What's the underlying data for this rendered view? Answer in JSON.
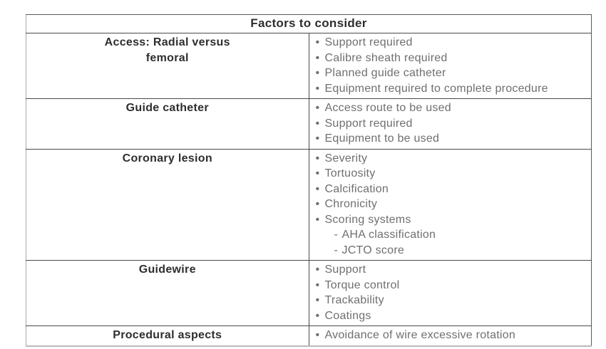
{
  "page": {
    "background": "#ffffff"
  },
  "table": {
    "title": "Factors to consider",
    "markers": {
      "bullet": "•",
      "sub_dash": "-"
    },
    "colors": {
      "heading_text": "#2e2e2e",
      "body_text": "#6f6f6f",
      "border_dark": "#4a4a4a",
      "border_light": "#b9b9b9"
    },
    "rows": [
      {
        "factor_lines": [
          "Access: Radial versus",
          "femoral"
        ],
        "items": [
          {
            "text": "Support required",
            "sub": false
          },
          {
            "text": "Calibre sheath required",
            "sub": false
          },
          {
            "text": "Planned guide catheter",
            "sub": false
          },
          {
            "text": "Equipment required to complete procedure",
            "sub": false
          }
        ]
      },
      {
        "factor_lines": [
          "Guide catheter"
        ],
        "items": [
          {
            "text": "Access route to be used",
            "sub": false
          },
          {
            "text": "Support required",
            "sub": false
          },
          {
            "text": "Equipment to be used",
            "sub": false
          }
        ]
      },
      {
        "factor_lines": [
          "Coronary lesion"
        ],
        "items": [
          {
            "text": "Severity",
            "sub": false
          },
          {
            "text": "Tortuosity",
            "sub": false
          },
          {
            "text": "Calcification",
            "sub": false
          },
          {
            "text": "Chronicity",
            "sub": false
          },
          {
            "text": "Scoring systems",
            "sub": false
          },
          {
            "text": "AHA classification",
            "sub": true
          },
          {
            "text": "JCTO score",
            "sub": true
          }
        ]
      },
      {
        "factor_lines": [
          "Guidewire"
        ],
        "items": [
          {
            "text": "Support",
            "sub": false
          },
          {
            "text": "Torque control",
            "sub": false
          },
          {
            "text": "Trackability",
            "sub": false
          },
          {
            "text": "Coatings",
            "sub": false
          }
        ]
      },
      {
        "factor_lines": [
          "Procedural aspects"
        ],
        "items": [
          {
            "text": "Avoidance of wire excessive rotation",
            "sub": false
          }
        ]
      }
    ]
  }
}
